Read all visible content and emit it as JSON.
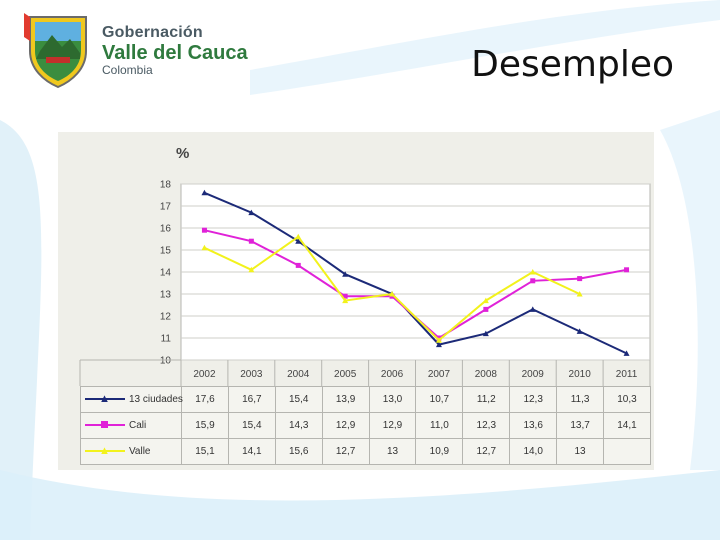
{
  "header": {
    "logo_line1": "Gobernación",
    "logo_line2": "Valle del Cauca",
    "logo_line3": "Colombia",
    "slide_title": "Desempleo"
  },
  "chart_data": {
    "type": "line",
    "title": "",
    "ylabel": "%",
    "xlabel": "",
    "ylim": [
      10,
      18
    ],
    "yticks": [
      10,
      11,
      12,
      13,
      14,
      15,
      16,
      17,
      18
    ],
    "categories": [
      "2002",
      "2003",
      "2004",
      "2005",
      "2006",
      "2007",
      "2008",
      "2009",
      "2010",
      "2011"
    ],
    "series": [
      {
        "name": "13 ciudades",
        "color": "#1c2a78",
        "marker": "triangle",
        "values": [
          17.6,
          16.7,
          15.4,
          13.9,
          13.0,
          10.7,
          11.2,
          12.3,
          11.3,
          10.3
        ],
        "labels": [
          "17,6",
          "16,7",
          "15,4",
          "13,9",
          "13,0",
          "10,7",
          "11,2",
          "12,3",
          "11,3",
          "10,3"
        ]
      },
      {
        "name": "Cali",
        "color": "#e022d8",
        "marker": "square",
        "values": [
          15.9,
          15.4,
          14.3,
          12.9,
          12.9,
          11.0,
          12.3,
          13.6,
          13.7,
          14.1
        ],
        "labels": [
          "15,9",
          "15,4",
          "14,3",
          "12,9",
          "12,9",
          "11,0",
          "12,3",
          "13,6",
          "13,7",
          "14,1"
        ]
      },
      {
        "name": "Valle",
        "color": "#f2f21c",
        "marker": "triangle",
        "values": [
          15.1,
          14.1,
          15.6,
          12.7,
          13,
          10.9,
          12.7,
          14.0,
          13,
          null
        ],
        "labels": [
          "15,1",
          "14,1",
          "15,6",
          "12,7",
          "13",
          "10,9",
          "12,7",
          "14,0",
          "13",
          ""
        ]
      }
    ]
  }
}
